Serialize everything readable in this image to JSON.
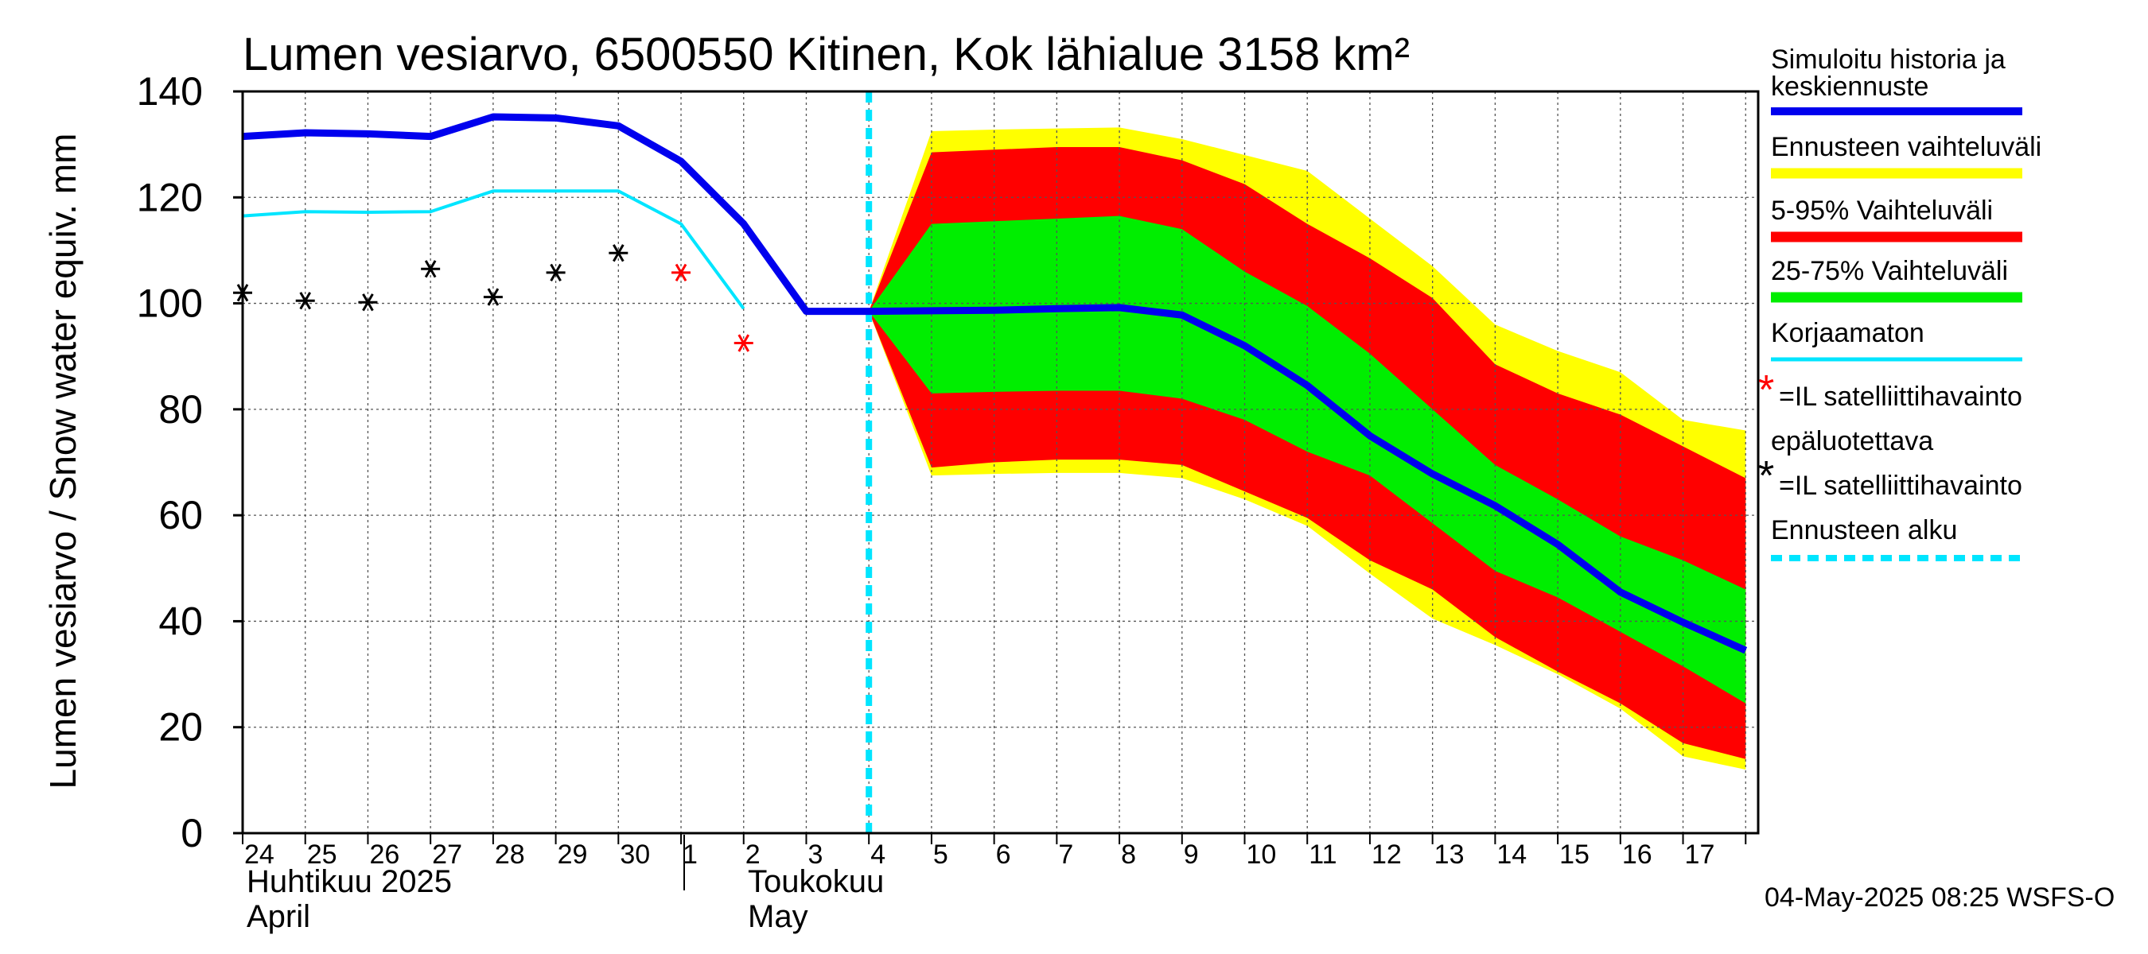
{
  "chart_data": {
    "type": "area",
    "title": "Lumen vesiarvo, 6500550 Kitinen, Kok lähialue 3158 km²",
    "ylabel": "Lumen vesiarvo / Snow water equiv.    mm",
    "xlabel": "",
    "ylim": [
      0,
      140
    ],
    "yticks": [
      0,
      20,
      40,
      60,
      80,
      100,
      120,
      140
    ],
    "xlim": [
      0,
      24.2
    ],
    "day_labels": [
      "24",
      "25",
      "26",
      "27",
      "28",
      "29",
      "30",
      "1",
      "2",
      "3",
      "4",
      "5",
      "6",
      "7",
      "8",
      "9",
      "10",
      "11",
      "12",
      "13",
      "14",
      "15",
      "16",
      "17"
    ],
    "month_labels": {
      "april_fi": "Huhtikuu  2025",
      "april_en": "April",
      "may_fi": "Toukokuu",
      "may_en": "May"
    },
    "forecast_start_x": 10,
    "band_x": [
      10,
      11,
      12,
      13,
      14,
      15,
      16,
      17,
      18,
      19,
      20,
      21,
      22,
      23,
      24
    ],
    "series": [
      {
        "name": "Simuloitu historia ja keskiennuste",
        "color": "#0000ee",
        "x": [
          0,
          1,
          2,
          3,
          4,
          5,
          6,
          7,
          8,
          9,
          10,
          11,
          12,
          13,
          14,
          15,
          16,
          17,
          18,
          19,
          20,
          21,
          22,
          23,
          24
        ],
        "values": [
          131.5,
          132.2,
          132.0,
          131.5,
          135.2,
          135.0,
          133.5,
          126.8,
          115.0,
          98.5,
          98.5,
          98.6,
          98.7,
          99.0,
          99.2,
          97.8,
          92.0,
          84.5,
          75.0,
          67.8,
          61.8,
          54.5,
          45.5,
          39.8,
          34.5
        ]
      },
      {
        "name": "Korjaamaton",
        "color": "#00e5ff",
        "x": [
          0,
          1,
          2,
          3,
          4,
          5,
          6,
          7,
          8
        ],
        "values": [
          116.5,
          117.3,
          117.2,
          117.3,
          121.2,
          121.2,
          121.2,
          115.0,
          99.0
        ]
      }
    ],
    "bands": [
      {
        "name": "Ennusteen vaihteluväli",
        "color": "#ffff00",
        "upper": [
          98.5,
          132.5,
          132.8,
          133.0,
          133.2,
          131.0,
          128.0,
          125.0,
          116.0,
          107.0,
          96.0,
          91.0,
          87.0,
          78.0,
          76.0
        ],
        "lower": [
          98.5,
          67.5,
          67.8,
          68.0,
          68.0,
          67.0,
          63.0,
          58.0,
          49.0,
          40.5,
          35.5,
          30.0,
          23.5,
          14.5,
          12.0
        ]
      },
      {
        "name": "5-95% Vaihteluväli",
        "color": "#ff0000",
        "upper": [
          98.5,
          128.5,
          129.0,
          129.5,
          129.5,
          127.0,
          122.5,
          115.0,
          108.5,
          101.0,
          88.5,
          83.0,
          79.0,
          73.0,
          67.0
        ],
        "lower": [
          98.5,
          69.0,
          70.0,
          70.5,
          70.5,
          69.5,
          64.5,
          59.5,
          51.5,
          46.0,
          37.0,
          30.5,
          24.5,
          17.0,
          14.0
        ]
      },
      {
        "name": "25-75% Vaihteluväli",
        "color": "#00ee00",
        "upper": [
          98.5,
          115.0,
          115.5,
          116.0,
          116.5,
          114.0,
          106.0,
          99.5,
          90.5,
          80.0,
          69.5,
          63.0,
          56.0,
          51.5,
          46.0
        ],
        "lower": [
          98.5,
          83.0,
          83.3,
          83.5,
          83.5,
          82.0,
          78.0,
          72.0,
          67.5,
          58.5,
          49.5,
          44.5,
          38.0,
          31.5,
          24.5
        ]
      }
    ],
    "satellite_obs": {
      "name": "IL satelliittihavainto",
      "color": "#000000",
      "x": [
        0,
        1,
        2,
        3,
        4,
        5,
        6
      ],
      "values": [
        102,
        100.5,
        100.2,
        106.5,
        101.2,
        105.8,
        109.5
      ]
    },
    "satellite_obs_unreliable": {
      "name": "IL satelliittihavainto epäluotettava",
      "color": "#ff0000",
      "x": [
        7,
        8
      ],
      "values": [
        105.8,
        92.5
      ]
    }
  },
  "legend": {
    "sim_line1": "Simuloitu historia ja",
    "sim_line2": "keskiennuste",
    "range": "Ennusteen vaihteluväli",
    "p5_95": "5-95% Vaihteluväli",
    "p25_75": "25-75% Vaihteluväli",
    "uncorrected": "Korjaamaton",
    "sat_red_line1": "=IL satelliittihavainto",
    "sat_red_line2": "epäluotettava",
    "sat_black": "=IL satelliittihavainto",
    "forecast_start": "Ennusteen alku",
    "star_glyph": "*"
  },
  "footer": "04-May-2025 08:25 WSFS-O"
}
